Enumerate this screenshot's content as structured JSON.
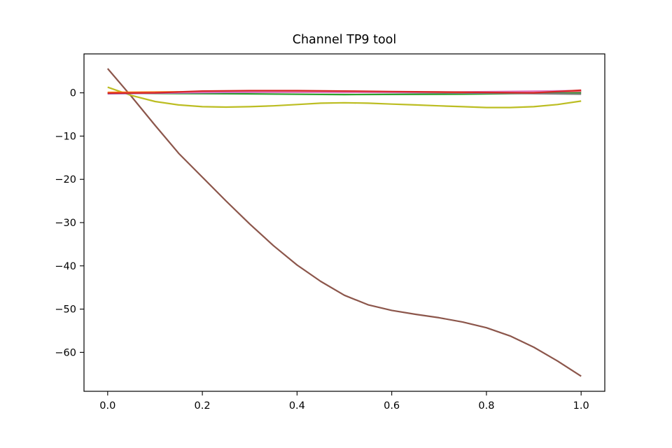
{
  "chart_data": {
    "type": "line",
    "title": "Channel TP9 tool",
    "xlabel": "",
    "ylabel": "",
    "xlim": [
      -0.05,
      1.05
    ],
    "ylim": [
      -69.0,
      9.0
    ],
    "grid": false,
    "xticks": [
      0.0,
      0.2,
      0.4,
      0.6,
      0.8,
      1.0
    ],
    "xtick_labels": [
      "0.0",
      "0.2",
      "0.4",
      "0.6",
      "0.8",
      "1.0"
    ],
    "yticks": [
      0,
      -10,
      -20,
      -30,
      -40,
      -50,
      -60
    ],
    "ytick_labels": [
      "0",
      "−10",
      "−20",
      "−30",
      "−40",
      "−50",
      "−60"
    ],
    "series": [
      {
        "color": "#8c564b",
        "x": [
          0.0,
          0.05,
          0.1,
          0.15,
          0.2,
          0.25,
          0.3,
          0.35,
          0.4,
          0.45,
          0.5,
          0.55,
          0.6,
          0.65,
          0.7,
          0.75,
          0.8,
          0.85,
          0.9,
          0.95,
          1.0
        ],
        "y": [
          5.6,
          -0.8,
          -7.5,
          -14.0,
          -19.5,
          -25.0,
          -30.3,
          -35.3,
          -39.8,
          -43.6,
          -46.8,
          -49.0,
          -50.3,
          -51.2,
          -52.0,
          -53.0,
          -54.3,
          -56.2,
          -58.8,
          -62.0,
          -65.5
        ]
      },
      {
        "color": "#bcbd22",
        "x": [
          0.0,
          0.05,
          0.1,
          0.15,
          0.2,
          0.25,
          0.3,
          0.35,
          0.4,
          0.45,
          0.5,
          0.55,
          0.6,
          0.65,
          0.7,
          0.75,
          0.8,
          0.85,
          0.9,
          0.95,
          1.0
        ],
        "y": [
          1.3,
          -0.6,
          -2.0,
          -2.8,
          -3.2,
          -3.3,
          -3.2,
          -3.0,
          -2.7,
          -2.4,
          -2.3,
          -2.4,
          -2.6,
          -2.8,
          -3.0,
          -3.2,
          -3.4,
          -3.4,
          -3.2,
          -2.7,
          -1.9
        ]
      },
      {
        "color": "#2ca02c",
        "x": [
          0.0,
          0.25,
          0.5,
          0.75,
          1.0
        ],
        "y": [
          -0.1,
          -0.2,
          -0.4,
          -0.3,
          0.0
        ]
      },
      {
        "color": "#7f7f7f",
        "x": [
          0.0,
          0.25,
          0.5,
          0.75,
          1.0
        ],
        "y": [
          0.0,
          0.2,
          0.1,
          0.0,
          -0.3
        ]
      },
      {
        "color": "#9467bd",
        "x": [
          0.0,
          0.25,
          0.5,
          0.75,
          1.0
        ],
        "y": [
          -0.2,
          0.1,
          0.2,
          0.0,
          0.3
        ]
      },
      {
        "color": "#ff7f0e",
        "x": [
          0.0,
          0.25,
          0.5,
          0.75,
          1.0
        ],
        "y": [
          0.1,
          0.3,
          0.3,
          0.1,
          0.4
        ]
      },
      {
        "color": "#e377c2",
        "x": [
          0.0,
          0.25,
          0.5,
          0.75,
          1.0
        ],
        "y": [
          -0.1,
          0.2,
          0.1,
          0.2,
          0.5
        ]
      },
      {
        "color": "#d62728",
        "x": [
          0.0,
          0.1,
          0.2,
          0.3,
          0.4,
          0.5,
          0.6,
          0.7,
          0.8,
          0.9,
          1.0
        ],
        "y": [
          -0.1,
          0.0,
          0.4,
          0.5,
          0.5,
          0.4,
          0.3,
          0.2,
          0.1,
          0.0,
          0.6
        ]
      }
    ]
  }
}
